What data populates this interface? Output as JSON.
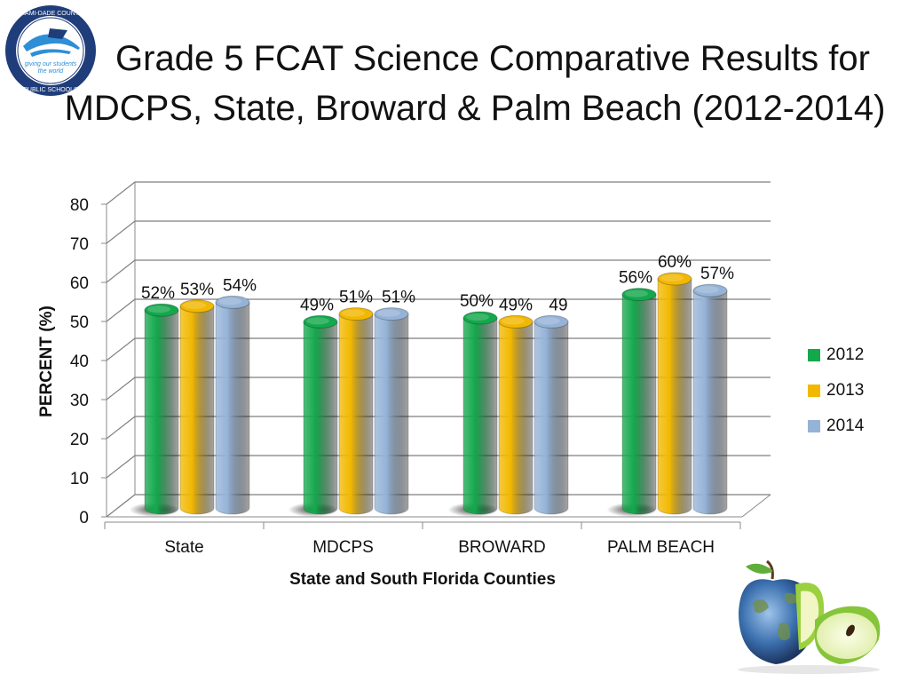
{
  "logo": {
    "ring_text": "MIAMI-DADE COUNTY",
    "slogan": "giving our students the world",
    "bottom_text": "PUBLIC SCHOOLS",
    "colors": {
      "navy": "#1f3d7a",
      "blue": "#2e8fd6"
    }
  },
  "title": {
    "line1": "Grade 5  FCAT Science Comparative Results for",
    "line2": "MDCPS, State, Broward & Palm Beach (2012-2014)"
  },
  "chart_data": {
    "type": "bar",
    "categories": [
      "State",
      "MDCPS",
      "BROWARD",
      "PALM BEACH"
    ],
    "series": [
      {
        "name": "2012",
        "color": "#14a84c",
        "values": [
          52,
          49,
          50,
          56
        ],
        "labels": [
          "52%",
          "49%",
          "50%",
          "56%"
        ]
      },
      {
        "name": "2013",
        "color": "#f2b800",
        "values": [
          53,
          51,
          49,
          60
        ],
        "labels": [
          "53%",
          "51%",
          "49%",
          "60%"
        ]
      },
      {
        "name": "2014",
        "color": "#95b3d7",
        "values": [
          54,
          51,
          49,
          57
        ],
        "labels": [
          "54%",
          "51%",
          "49",
          "57%"
        ]
      }
    ],
    "ylim": [
      0,
      80
    ],
    "yticks": [
      0,
      10,
      20,
      30,
      40,
      50,
      60,
      70,
      80
    ],
    "ylabel": "PERCENT (%)",
    "xlabel": "State and South Florida Counties",
    "grid": true,
    "legend_position": "right"
  },
  "decor": {
    "apple_icon": "earth-apple-icon"
  }
}
